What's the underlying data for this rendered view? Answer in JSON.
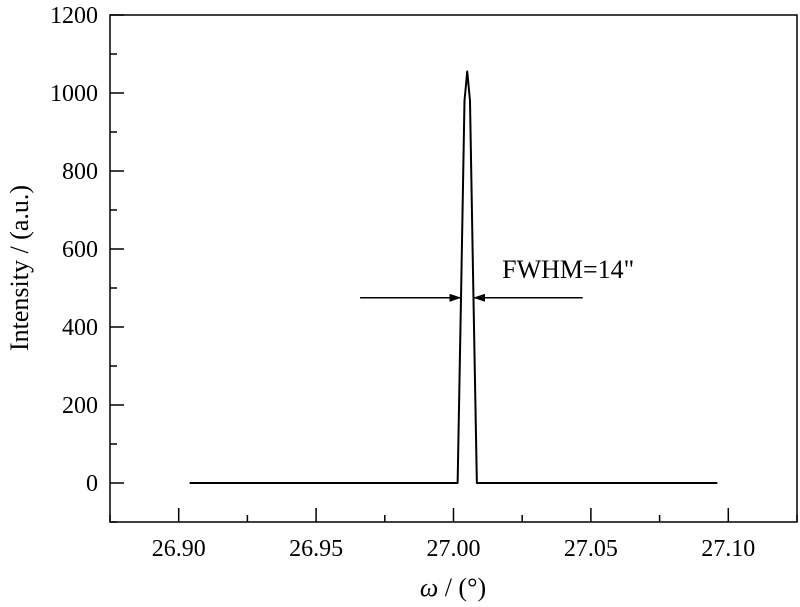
{
  "chart_data": {
    "type": "line",
    "title": "",
    "xlabel_symbol": "ω",
    "xlabel_rest": " / (°)",
    "ylabel": "Intensity / (a.u.)",
    "xlim": [
      26.875,
      27.125
    ],
    "ylim": [
      -100,
      1200
    ],
    "x_ticks": [
      26.9,
      26.95,
      27.0,
      27.05,
      27.1
    ],
    "x_tick_labels": [
      "26.90",
      "26.95",
      "27.00",
      "27.05",
      "27.10"
    ],
    "y_ticks": [
      0,
      200,
      400,
      600,
      800,
      1000,
      1200
    ],
    "y_tick_labels": [
      "0",
      "200",
      "400",
      "600",
      "800",
      "1000",
      "1200"
    ],
    "grid": false,
    "series": [
      {
        "x": [
          26.904,
          27.0015,
          27.0028,
          27.004,
          27.005,
          27.006,
          27.0072,
          27.0085,
          27.096
        ],
        "y": [
          0,
          0,
          500,
          980,
          1055,
          980,
          500,
          0,
          0
        ]
      }
    ],
    "annotation": {
      "text": "FWHM=14\"",
      "y": 475,
      "left_arrow_from": 26.966,
      "left_arrow_to": 27.0025,
      "right_arrow_from": 27.047,
      "right_arrow_to": 27.0075
    }
  }
}
